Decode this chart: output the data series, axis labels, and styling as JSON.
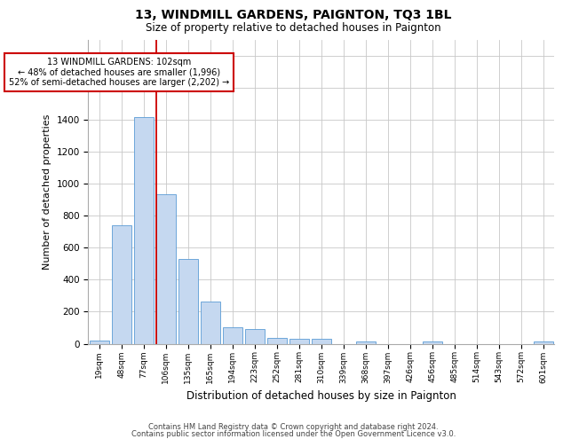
{
  "title1": "13, WINDMILL GARDENS, PAIGNTON, TQ3 1BL",
  "title2": "Size of property relative to detached houses in Paignton",
  "xlabel": "Distribution of detached houses by size in Paignton",
  "ylabel": "Number of detached properties",
  "footer1": "Contains HM Land Registry data © Crown copyright and database right 2024.",
  "footer2": "Contains public sector information licensed under the Open Government Licence v3.0.",
  "categories": [
    "19sqm",
    "48sqm",
    "77sqm",
    "106sqm",
    "135sqm",
    "165sqm",
    "194sqm",
    "223sqm",
    "252sqm",
    "281sqm",
    "310sqm",
    "339sqm",
    "368sqm",
    "397sqm",
    "426sqm",
    "456sqm",
    "485sqm",
    "514sqm",
    "543sqm",
    "572sqm",
    "601sqm"
  ],
  "values": [
    22,
    740,
    1420,
    935,
    530,
    265,
    105,
    90,
    38,
    28,
    28,
    0,
    15,
    0,
    0,
    14,
    0,
    0,
    0,
    0,
    13
  ],
  "bar_color": "#c5d8f0",
  "bar_edge_color": "#5b9bd5",
  "marker_label1": "13 WINDMILL GARDENS: 102sqm",
  "marker_label2": "← 48% of detached houses are smaller (1,996)",
  "marker_label3": "52% of semi-detached houses are larger (2,202) →",
  "marker_line_color": "#cc0000",
  "annotation_box_edge_color": "#cc0000",
  "ylim": [
    0,
    1900
  ],
  "yticks": [
    0,
    200,
    400,
    600,
    800,
    1000,
    1200,
    1400,
    1600,
    1800
  ],
  "bg_color": "#ffffff",
  "grid_color": "#c8c8c8"
}
